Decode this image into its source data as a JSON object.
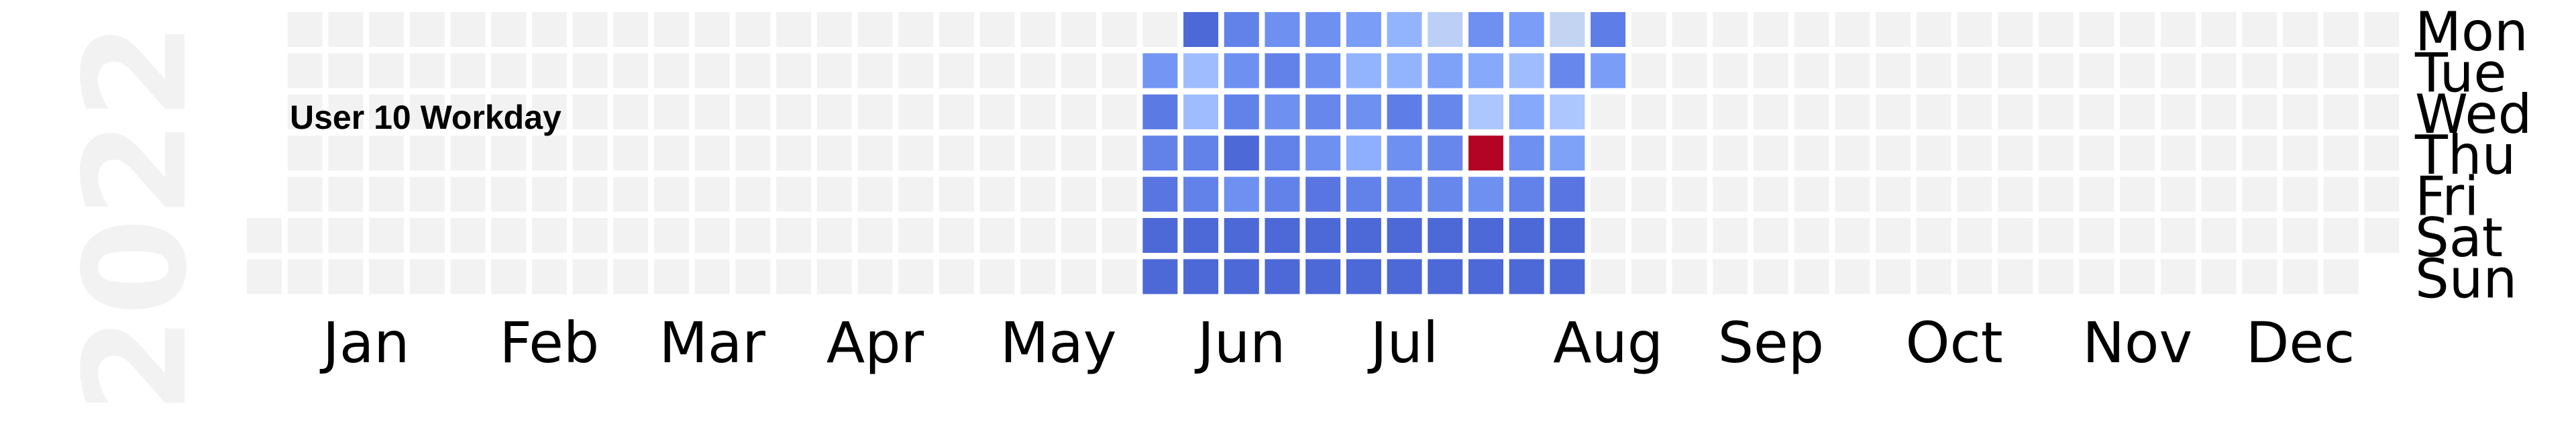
{
  "chart_data": {
    "type": "heatmap",
    "title": "User 10 Workday",
    "year": "2022",
    "first_day": "2022-01-01",
    "last_day": "2022-12-31",
    "weekdays": [
      "Mon",
      "Tue",
      "Wed",
      "Thu",
      "Fri",
      "Sat",
      "Sun"
    ],
    "months": [
      "Jan",
      "Feb",
      "Mar",
      "Apr",
      "May",
      "Jun",
      "Jul",
      "Aug",
      "Sep",
      "Oct",
      "Nov",
      "Dec"
    ],
    "colorscale": "coolwarm",
    "empty_color": "#f2f2f2",
    "data_start": "2022-05-30",
    "weeks": [
      {
        "week_of": "2022-05-30",
        "values": [
          null,
          0.27,
          0.17,
          0.2,
          0.15,
          0.1,
          0.1
        ]
      },
      {
        "week_of": "2022-06-06",
        "values": [
          0.1,
          0.45,
          0.45,
          0.2,
          0.2,
          0.1,
          0.1
        ]
      },
      {
        "week_of": "2022-06-13",
        "values": [
          0.2,
          0.25,
          0.2,
          0.1,
          0.25,
          0.1,
          0.1
        ]
      },
      {
        "week_of": "2022-06-20",
        "values": [
          0.25,
          0.2,
          0.25,
          0.2,
          0.2,
          0.1,
          0.1
        ]
      },
      {
        "week_of": "2022-06-27",
        "values": [
          0.25,
          0.25,
          0.22,
          0.25,
          0.15,
          0.1,
          0.1
        ]
      },
      {
        "week_of": "2022-07-04",
        "values": [
          0.3,
          0.4,
          0.25,
          0.38,
          0.2,
          0.1,
          0.1
        ]
      },
      {
        "week_of": "2022-07-11",
        "values": [
          0.4,
          0.4,
          0.18,
          0.25,
          0.2,
          0.1,
          0.1
        ]
      },
      {
        "week_of": "2022-07-18",
        "values": [
          0.55,
          0.32,
          0.22,
          0.22,
          0.22,
          0.1,
          0.1
        ]
      },
      {
        "week_of": "2022-07-25",
        "values": [
          0.25,
          0.35,
          0.5,
          1.0,
          0.25,
          0.1,
          0.1
        ]
      },
      {
        "week_of": "2022-08-01",
        "values": [
          0.3,
          0.45,
          0.35,
          0.25,
          0.2,
          0.1,
          0.1
        ]
      },
      {
        "week_of": "2022-08-08",
        "values": [
          0.58,
          0.22,
          0.5,
          0.32,
          0.15,
          0.1,
          0.1
        ]
      },
      {
        "week_of": "2022-08-15",
        "values": [
          0.18,
          0.3,
          null,
          null,
          null,
          null,
          null
        ]
      }
    ]
  }
}
